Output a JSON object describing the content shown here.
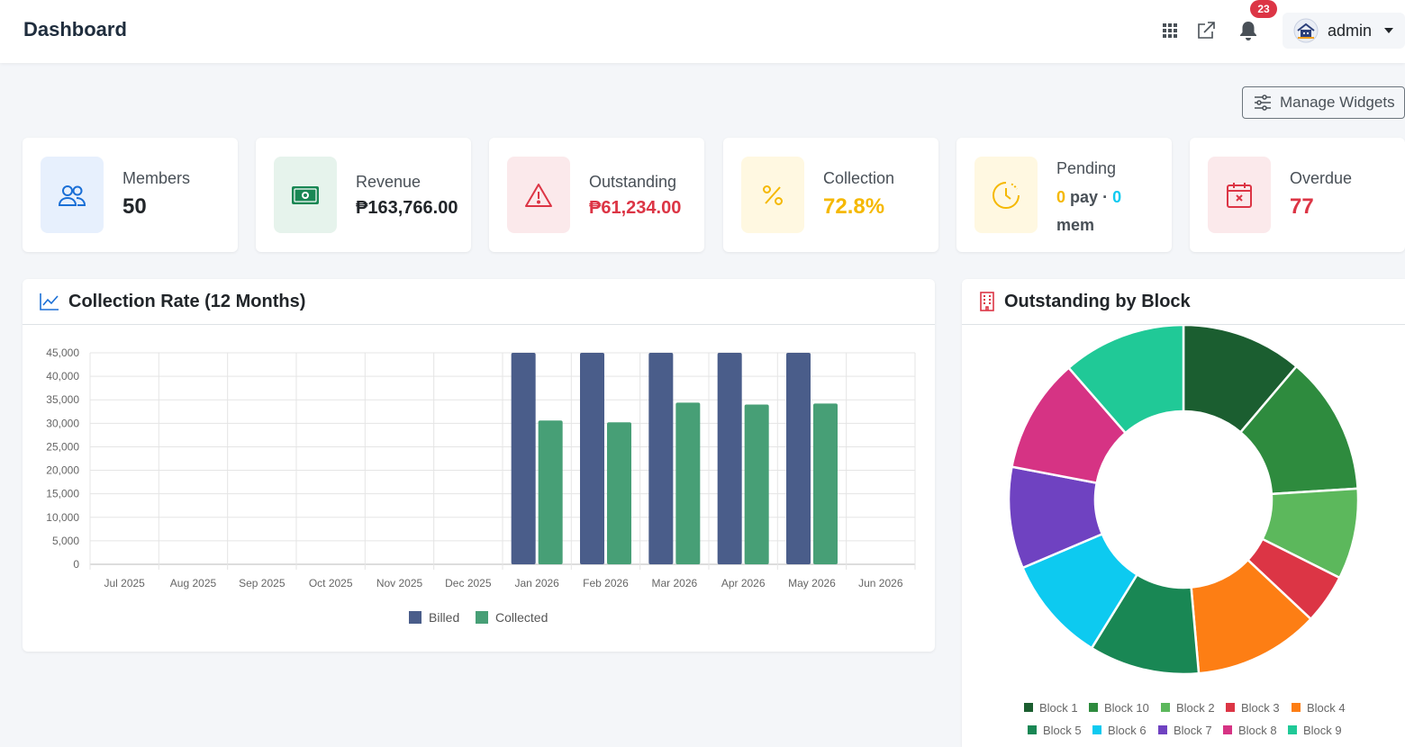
{
  "header": {
    "title": "Dashboard",
    "notification_count": "23",
    "user": "admin",
    "icons": [
      "apps-grid-icon",
      "external-link-icon",
      "bell-icon",
      "avatar"
    ]
  },
  "toolbar": {
    "manage_widgets_label": "Manage Widgets"
  },
  "stats": {
    "members": {
      "label": "Members",
      "value": "50",
      "icon": "users-icon",
      "color": "#1a6fd6"
    },
    "revenue": {
      "label": "Revenue",
      "value": "₱163,766.00",
      "icon": "cash-icon",
      "color": "#198754"
    },
    "outstanding": {
      "label": "Outstanding",
      "value": "₱61,234.00",
      "icon": "warning-icon",
      "color": "#dc3545"
    },
    "collection": {
      "label": "Collection",
      "value": "72.8%",
      "icon": "percent-icon",
      "color": "#f5b800"
    },
    "pending": {
      "label": "Pending",
      "count_pay": "0",
      "text_pay": "pay",
      "dot": "·",
      "count_mem": "0",
      "text_mem": "mem",
      "icon": "clock-icon",
      "color": "#f5b800"
    },
    "overdue": {
      "label": "Overdue",
      "value": "77",
      "icon": "calendar-x-icon",
      "color": "#dc3545"
    }
  },
  "collection_panel": {
    "title": "Collection Rate (12 Months)",
    "icon": "line-chart-icon"
  },
  "block_panel": {
    "title": "Outstanding by Block",
    "icon": "building-icon"
  },
  "chart_data": [
    {
      "type": "bar",
      "title": "Collection Rate (12 Months)",
      "categories": [
        "Jul 2025",
        "Aug 2025",
        "Sep 2025",
        "Oct 2025",
        "Nov 2025",
        "Dec 2025",
        "Jan 2026",
        "Feb 2026",
        "Mar 2026",
        "Apr 2026",
        "May 2026",
        "Jun 2026"
      ],
      "series": [
        {
          "name": "Billed",
          "color": "#4a5d8a",
          "values": [
            0,
            0,
            0,
            0,
            0,
            0,
            45000,
            45000,
            45000,
            45000,
            45000,
            0
          ]
        },
        {
          "name": "Collected",
          "color": "#479f76",
          "values": [
            0,
            0,
            0,
            0,
            0,
            0,
            30600,
            30200,
            34400,
            34000,
            34200,
            0
          ]
        }
      ],
      "yticks": [
        "0",
        "5,000",
        "10,000",
        "15,000",
        "20,000",
        "25,000",
        "30,000",
        "35,000",
        "40,000",
        "45,000"
      ],
      "ylim": [
        0,
        45000
      ],
      "grid": true,
      "legend": "bottom"
    },
    {
      "type": "pie",
      "title": "Outstanding by Block",
      "donut": true,
      "legend": "bottom",
      "labels": [
        "Block 1",
        "Block 10",
        "Block 2",
        "Block 3",
        "Block 4",
        "Block 5",
        "Block 6",
        "Block 7",
        "Block 8",
        "Block 9"
      ],
      "colors": [
        "#1b5e30",
        "#2e8b3e",
        "#5cb85c",
        "#dc3545",
        "#fd7e14",
        "#198754",
        "#0dcaf0",
        "#6f42c1",
        "#d63384",
        "#20c997"
      ],
      "values": [
        11.2,
        12.8,
        8.4,
        4.6,
        11.6,
        10.2,
        9.8,
        9.4,
        10.6,
        11.4
      ]
    }
  ]
}
